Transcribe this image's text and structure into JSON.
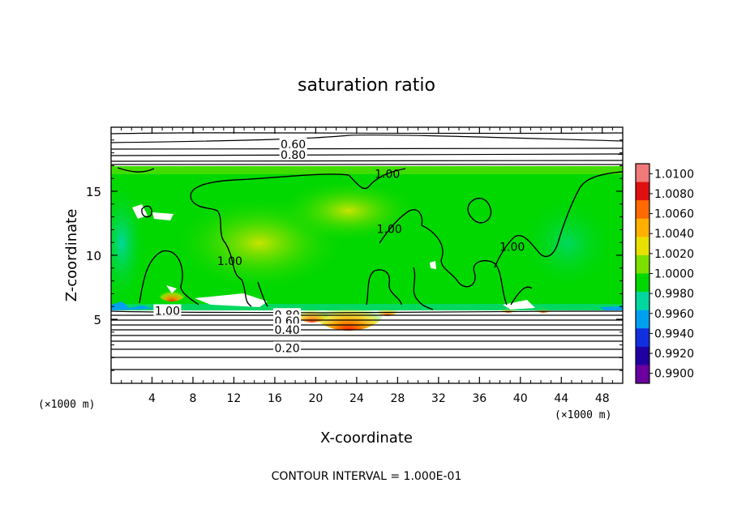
{
  "chart_data": {
    "type": "heatmap",
    "title": "saturation ratio",
    "xlabel": "X-coordinate",
    "ylabel": "Z-coordinate",
    "x_units_left": "(×1000 m)",
    "x_units_right": "(×1000 m)",
    "xlim": [
      0,
      50
    ],
    "ylim": [
      0,
      20
    ],
    "x_ticks": [
      4,
      8,
      12,
      16,
      20,
      24,
      28,
      32,
      36,
      40,
      44,
      48
    ],
    "y_ticks": [
      5,
      10,
      15
    ],
    "footer": "CONTOUR INTERVAL = 1.000E-01",
    "shaded_band_z": [
      5.6,
      17.0
    ],
    "colorbar": {
      "levels": [
        "1.0100",
        "1.0080",
        "1.0060",
        "1.0040",
        "1.0020",
        "1.0000",
        "0.9980",
        "0.9960",
        "0.9940",
        "0.9920",
        "0.9900"
      ],
      "colors": [
        "#f07a7a",
        "#e01010",
        "#ff6a00",
        "#ffb000",
        "#e8e000",
        "#7ce000",
        "#00d800",
        "#00d8a0",
        "#00a0f0",
        "#1030e0",
        "#2000a0",
        "#6a00a0"
      ]
    },
    "contour_labels": [
      {
        "text": "0.60",
        "x": 17.8,
        "z": 18.6
      },
      {
        "text": "0.80",
        "x": 17.8,
        "z": 17.8
      },
      {
        "text": "1.00",
        "x": 27.0,
        "z": 16.3
      },
      {
        "text": "1.00",
        "x": 27.2,
        "z": 12.0
      },
      {
        "text": "1.00",
        "x": 39.2,
        "z": 10.6
      },
      {
        "text": "1.00",
        "x": 11.6,
        "z": 9.5
      },
      {
        "text": "1.00",
        "x": 5.5,
        "z": 5.6
      },
      {
        "text": "0.80",
        "x": 17.2,
        "z": 5.3
      },
      {
        "text": "0.60",
        "x": 17.2,
        "z": 4.8
      },
      {
        "text": "0.40",
        "x": 17.2,
        "z": 4.1
      },
      {
        "text": "0.20",
        "x": 17.2,
        "z": 2.7
      }
    ]
  }
}
